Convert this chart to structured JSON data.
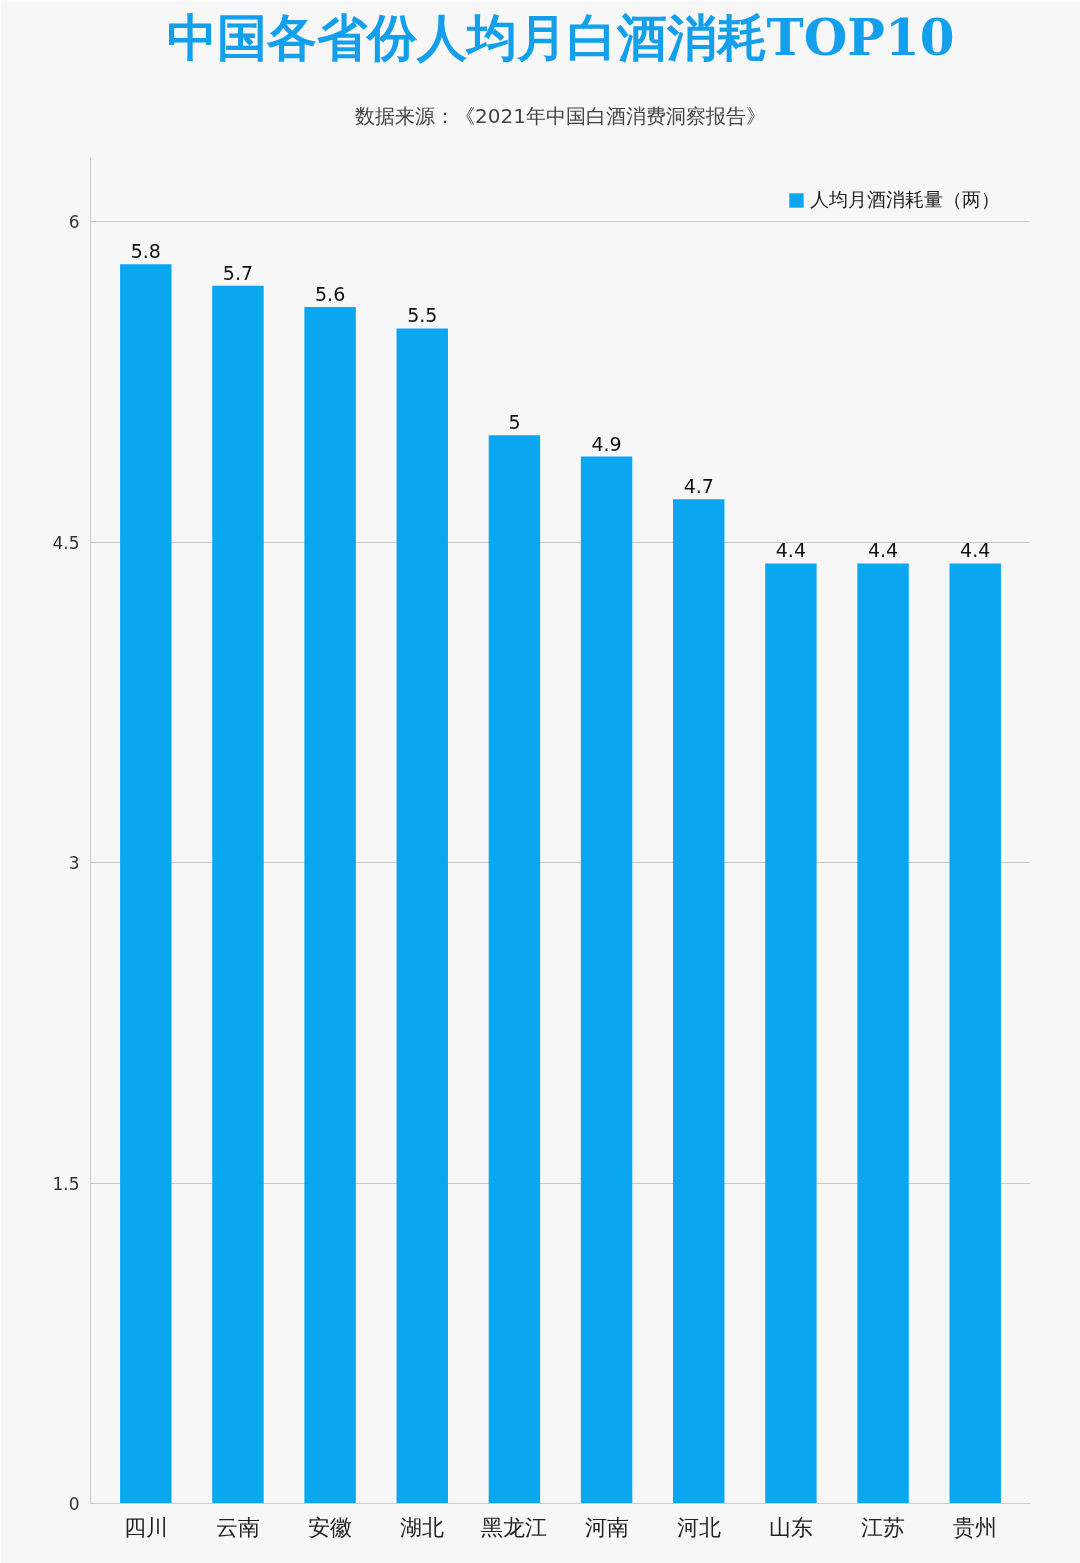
{
  "chart_data": {
    "type": "bar",
    "title": "中国各省份人均月白酒消耗TOP10",
    "subtitle": "数据来源：《2021年中国白酒消费洞察报告》",
    "categories": [
      "四川",
      "云南",
      "安徽",
      "湖北",
      "黑龙江",
      "河南",
      "河北",
      "山东",
      "江苏",
      "贵州"
    ],
    "series": [
      {
        "name": "人均月酒消耗量（两）",
        "color": "#0aa6ef",
        "values": [
          5.8,
          5.7,
          5.6,
          5.5,
          5,
          4.9,
          4.7,
          4.4,
          4.4,
          4.4
        ]
      }
    ],
    "ylim": [
      0,
      6.3
    ],
    "yticks": [
      0,
      1.5,
      3,
      4.5,
      6
    ],
    "grid": "y",
    "legend": "top right",
    "data_labels": true
  }
}
